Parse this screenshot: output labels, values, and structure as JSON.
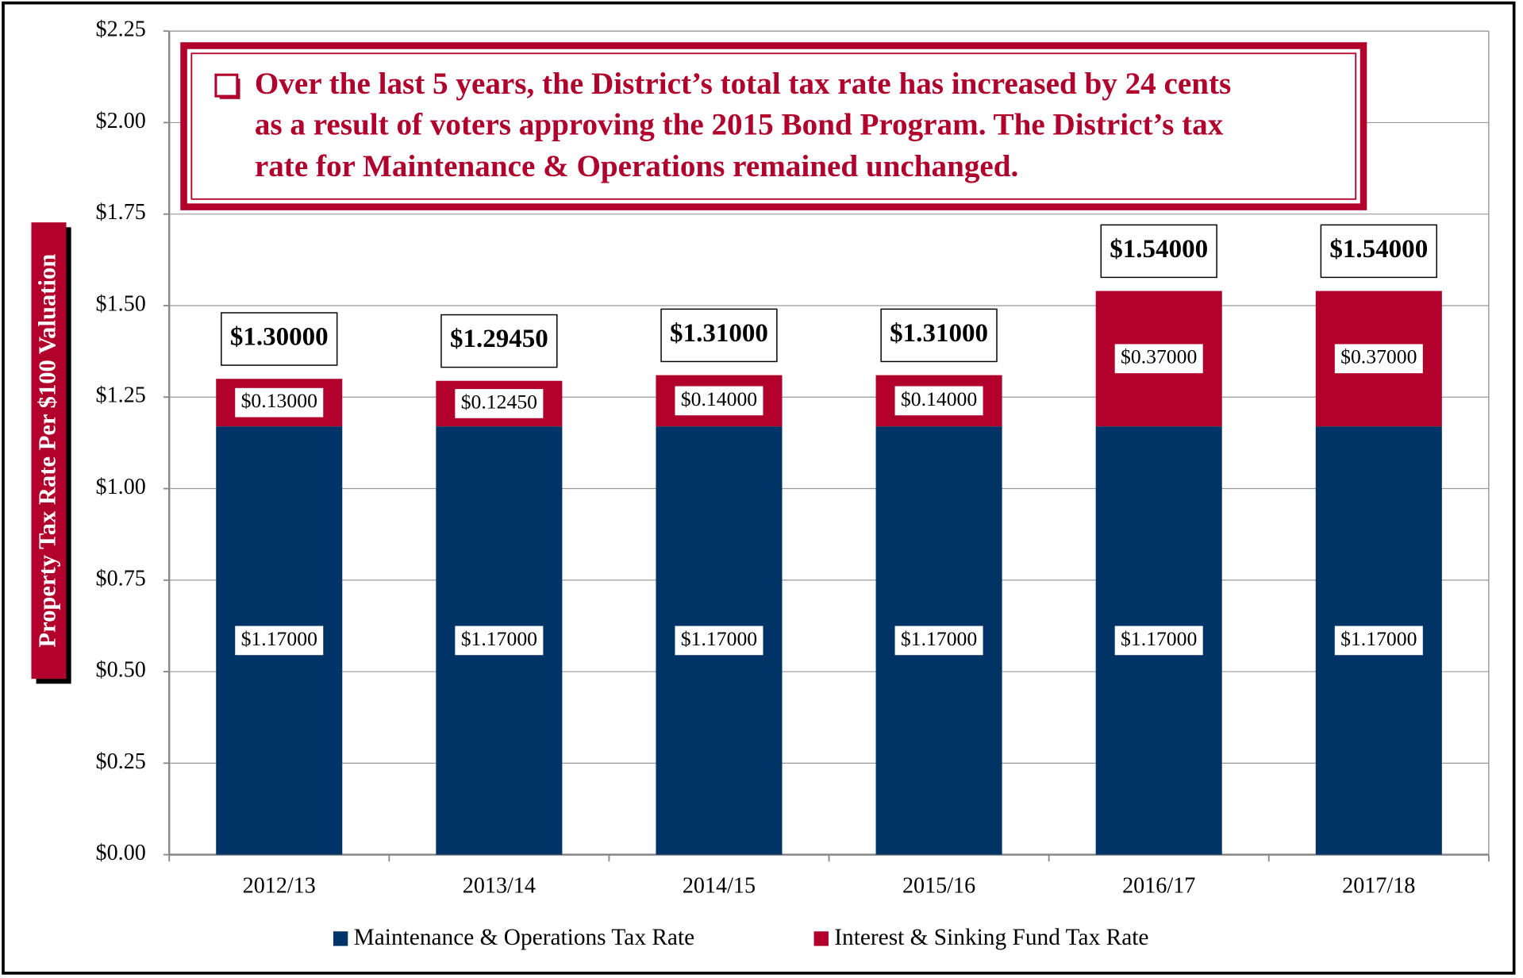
{
  "chart_data": {
    "type": "stacked_bar",
    "annotation": [
      "Over the last 5 years, the District’s total tax rate has increased by 24 cents",
      "as a result of voters approving the 2015 Bond Program. The District’s tax",
      "rate for Maintenance & Operations remained unchanged."
    ],
    "y_label": "Property Tax Rate Per $100 Valuation",
    "categories": [
      "2012/13",
      "2013/14",
      "2014/15",
      "2015/16",
      "2016/17",
      "2017/18"
    ],
    "series": [
      {
        "name": "Maintenance & Operations Tax Rate",
        "color": "#003366",
        "values": [
          1.17,
          1.17,
          1.17,
          1.17,
          1.17,
          1.17
        ],
        "value_labels": [
          "$1.17000",
          "$1.17000",
          "$1.17000",
          "$1.17000",
          "$1.17000",
          "$1.17000"
        ]
      },
      {
        "name": "Interest & Sinking Fund Tax Rate",
        "color": "#b0002b",
        "values": [
          0.13,
          0.1245,
          0.14,
          0.14,
          0.37,
          0.37
        ],
        "value_labels": [
          "$0.13000",
          "$0.12450",
          "$0.14000",
          "$0.14000",
          "$0.37000",
          "$0.37000"
        ]
      }
    ],
    "totals": [
      1.3,
      1.2945,
      1.31,
      1.31,
      1.54,
      1.54
    ],
    "total_labels": [
      "$1.30000",
      "$1.29450",
      "$1.31000",
      "$1.31000",
      "$1.54000",
      "$1.54000"
    ],
    "ylim": [
      0,
      2.25
    ],
    "yticks": [
      {
        "value": 0,
        "label": "$0.00"
      },
      {
        "value": 0.25,
        "label": "$0.25"
      },
      {
        "value": 0.5,
        "label": "$0.50"
      },
      {
        "value": 0.75,
        "label": "$0.75"
      },
      {
        "value": 1,
        "label": "$1.00"
      },
      {
        "value": 1.25,
        "label": "$1.25"
      },
      {
        "value": 1.5,
        "label": "$1.50"
      },
      {
        "value": 1.75,
        "label": "$1.75"
      },
      {
        "value": 2,
        "label": "$2.00"
      },
      {
        "value": 2.25,
        "label": "$2.25"
      }
    ],
    "grid": true,
    "legend": "bottom"
  }
}
